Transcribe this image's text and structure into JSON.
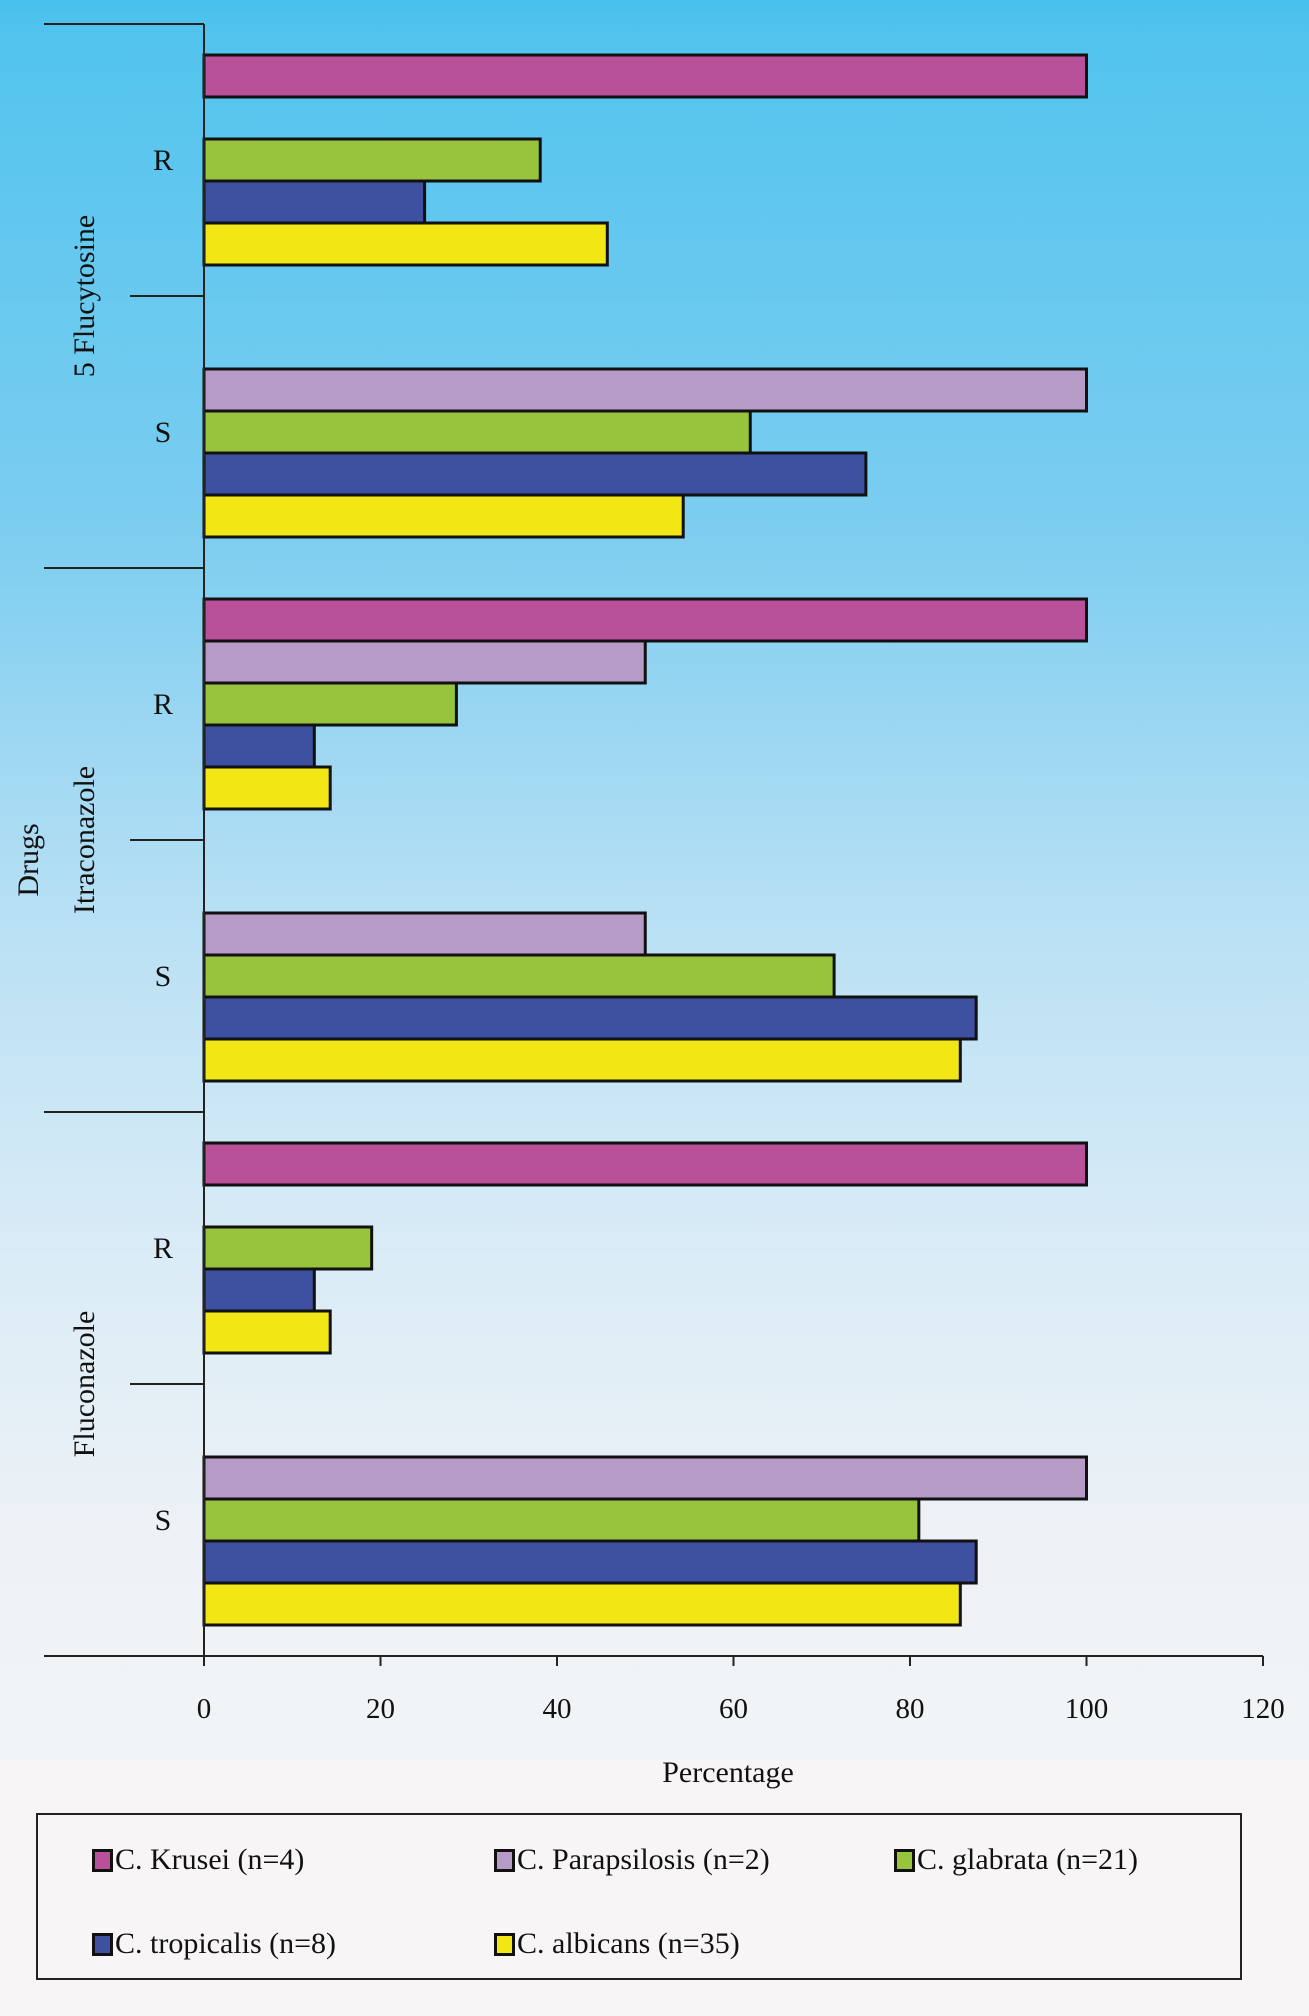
{
  "chart_data": {
    "type": "bar",
    "orientation": "horizontal",
    "title": "",
    "xlabel": "Percentage",
    "ylabel": "Drugs",
    "xlim": [
      0,
      120
    ],
    "xticks": [
      0,
      20,
      40,
      60,
      80,
      100,
      120
    ],
    "grid": false,
    "legend_position": "bottom",
    "drugs": [
      "5 Flucytosine",
      "Itraconazole",
      "Fluconazole"
    ],
    "categories": [
      {
        "drug": "5 Flucytosine",
        "label": "R"
      },
      {
        "drug": "5 Flucytosine",
        "label": "S"
      },
      {
        "drug": "Itraconazole",
        "label": "R"
      },
      {
        "drug": "Itraconazole",
        "label": "S"
      },
      {
        "drug": "Fluconazole",
        "label": "R"
      },
      {
        "drug": "Fluconazole",
        "label": "S"
      }
    ],
    "series": [
      {
        "name": "C. Krusei (n=4)",
        "color": "#b8509a",
        "values": [
          100,
          0,
          100,
          0,
          100,
          0
        ]
      },
      {
        "name": "C. Parapsilosis (n=2)",
        "color": "#b79bc7",
        "values": [
          0,
          100,
          50,
          50,
          0,
          100
        ]
      },
      {
        "name": "C. glabrata (n=21)",
        "color": "#97c43c",
        "values": [
          38.1,
          61.9,
          28.6,
          71.4,
          19.0,
          81.0
        ]
      },
      {
        "name": "C. tropicalis (n=8)",
        "color": "#3d51a0",
        "values": [
          25,
          75,
          12.5,
          87.5,
          12.5,
          87.5
        ]
      },
      {
        "name": "C. albicans (n=35)",
        "color": "#f2e614",
        "values": [
          45.7,
          54.3,
          14.3,
          85.7,
          14.3,
          85.7
        ]
      }
    ]
  },
  "legend": {
    "items": [
      {
        "label": "C. Krusei (n=4)",
        "color": "#b8509a"
      },
      {
        "label": "C. Parapsilosis (n=2)",
        "color": "#b79bc7"
      },
      {
        "label": "C. glabrata (n=21)",
        "color": "#97c43c"
      },
      {
        "label": "C. tropicalis (n=8)",
        "color": "#3d51a0"
      },
      {
        "label": "C. albicans (n=35)",
        "color": "#f2e614"
      }
    ]
  }
}
